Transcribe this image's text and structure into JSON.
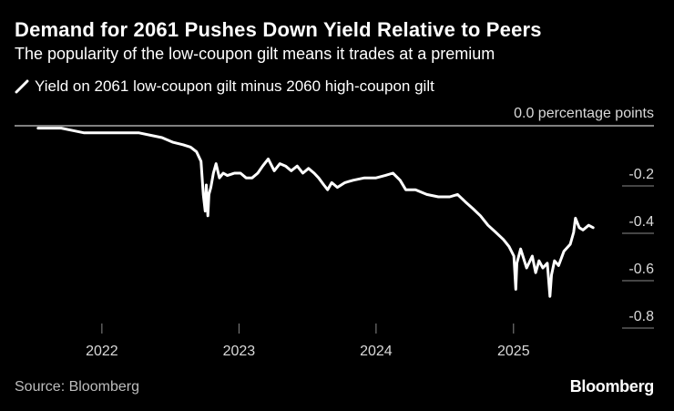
{
  "header": {
    "title": "Demand for 2061 Pushes Down Yield Relative to Peers",
    "subtitle": "The popularity of the low-coupon gilt means it trades at a premium"
  },
  "footer": {
    "source": "Source: Bloomberg",
    "logo": "Bloomberg"
  },
  "colors": {
    "background": "#000000",
    "line": "#ffffff",
    "text": "#ffffff",
    "muted": "#bdbdbd"
  },
  "chart_data": {
    "type": "line",
    "title": "Demand for 2061 Pushes Down Yield Relative to Peers",
    "subtitle": "The popularity of the low-coupon gilt means it trades at a premium",
    "legend_position": "top-left",
    "grid": false,
    "y_unit_label": "0.0 percentage points",
    "ylim": [
      -0.8,
      0.0
    ],
    "yticks": [
      0.0,
      -0.2,
      -0.4,
      -0.6,
      -0.8
    ],
    "ytick_labels": [
      "0.0 percentage points",
      "-0.2",
      "-0.4",
      "-0.6",
      "-0.8"
    ],
    "xlim": [
      "2021-07-01",
      "2025-08-15"
    ],
    "xticks": [
      "2022-01-01",
      "2023-01-01",
      "2024-01-01",
      "2025-01-01"
    ],
    "xtick_labels": [
      "2022",
      "2023",
      "2024",
      "2025"
    ],
    "series": [
      {
        "name": "Yield on 2061 low-coupon gilt minus 2060 high-coupon gilt",
        "color": "#ffffff",
        "points": [
          [
            "2021-07-15",
            -0.01
          ],
          [
            "2021-08-15",
            -0.01
          ],
          [
            "2021-09-15",
            -0.01
          ],
          [
            "2021-10-15",
            -0.02
          ],
          [
            "2021-11-15",
            -0.03
          ],
          [
            "2021-12-15",
            -0.03
          ],
          [
            "2022-01-15",
            -0.03
          ],
          [
            "2022-02-15",
            -0.03
          ],
          [
            "2022-03-15",
            -0.03
          ],
          [
            "2022-04-10",
            -0.03
          ],
          [
            "2022-05-10",
            -0.04
          ],
          [
            "2022-06-10",
            -0.05
          ],
          [
            "2022-07-10",
            -0.07
          ],
          [
            "2022-08-05",
            -0.08
          ],
          [
            "2022-08-25",
            -0.09
          ],
          [
            "2022-09-10",
            -0.11
          ],
          [
            "2022-09-22",
            -0.15
          ],
          [
            "2022-09-28",
            -0.29
          ],
          [
            "2022-10-03",
            -0.36
          ],
          [
            "2022-10-06",
            -0.25
          ],
          [
            "2022-10-10",
            -0.38
          ],
          [
            "2022-10-13",
            -0.29
          ],
          [
            "2022-10-18",
            -0.26
          ],
          [
            "2022-10-25",
            -0.2
          ],
          [
            "2022-11-01",
            -0.16
          ],
          [
            "2022-11-10",
            -0.22
          ],
          [
            "2022-11-20",
            -0.2
          ],
          [
            "2022-12-01",
            -0.21
          ],
          [
            "2022-12-20",
            -0.2
          ],
          [
            "2023-01-05",
            -0.2
          ],
          [
            "2023-01-20",
            -0.22
          ],
          [
            "2023-02-05",
            -0.22
          ],
          [
            "2023-02-20",
            -0.2
          ],
          [
            "2023-03-05",
            -0.17
          ],
          [
            "2023-03-20",
            -0.14
          ],
          [
            "2023-04-05",
            -0.19
          ],
          [
            "2023-04-20",
            -0.16
          ],
          [
            "2023-05-05",
            -0.17
          ],
          [
            "2023-05-20",
            -0.19
          ],
          [
            "2023-06-05",
            -0.17
          ],
          [
            "2023-06-20",
            -0.2
          ],
          [
            "2023-07-05",
            -0.18
          ],
          [
            "2023-07-20",
            -0.2
          ],
          [
            "2023-08-01",
            -0.22
          ],
          [
            "2023-08-15",
            -0.25
          ],
          [
            "2023-08-25",
            -0.27
          ],
          [
            "2023-09-05",
            -0.24
          ],
          [
            "2023-09-20",
            -0.26
          ],
          [
            "2023-10-10",
            -0.24
          ],
          [
            "2023-11-01",
            -0.23
          ],
          [
            "2023-12-01",
            -0.22
          ],
          [
            "2024-01-01",
            -0.22
          ],
          [
            "2024-01-25",
            -0.21
          ],
          [
            "2024-02-15",
            -0.2
          ],
          [
            "2024-03-05",
            -0.23
          ],
          [
            "2024-03-20",
            -0.27
          ],
          [
            "2024-04-15",
            -0.27
          ],
          [
            "2024-05-15",
            -0.29
          ],
          [
            "2024-06-15",
            -0.3
          ],
          [
            "2024-07-15",
            -0.3
          ],
          [
            "2024-08-05",
            -0.29
          ],
          [
            "2024-08-25",
            -0.32
          ],
          [
            "2024-09-15",
            -0.35
          ],
          [
            "2024-10-05",
            -0.38
          ],
          [
            "2024-10-25",
            -0.42
          ],
          [
            "2024-11-15",
            -0.45
          ],
          [
            "2024-12-05",
            -0.48
          ],
          [
            "2024-12-20",
            -0.51
          ],
          [
            "2025-01-02",
            -0.55
          ],
          [
            "2025-01-07",
            -0.69
          ],
          [
            "2025-01-10",
            -0.58
          ],
          [
            "2025-01-20",
            -0.52
          ],
          [
            "2025-02-05",
            -0.6
          ],
          [
            "2025-02-20",
            -0.55
          ],
          [
            "2025-03-01",
            -0.62
          ],
          [
            "2025-03-10",
            -0.57
          ],
          [
            "2025-03-20",
            -0.6
          ],
          [
            "2025-04-01",
            -0.58
          ],
          [
            "2025-04-08",
            -0.72
          ],
          [
            "2025-04-12",
            -0.63
          ],
          [
            "2025-04-20",
            -0.57
          ],
          [
            "2025-05-01",
            -0.59
          ],
          [
            "2025-05-15",
            -0.53
          ],
          [
            "2025-06-01",
            -0.5
          ],
          [
            "2025-06-10",
            -0.45
          ],
          [
            "2025-06-15",
            -0.39
          ],
          [
            "2025-06-25",
            -0.43
          ],
          [
            "2025-07-05",
            -0.44
          ],
          [
            "2025-07-20",
            -0.42
          ],
          [
            "2025-08-01",
            -0.43
          ]
        ]
      }
    ]
  }
}
